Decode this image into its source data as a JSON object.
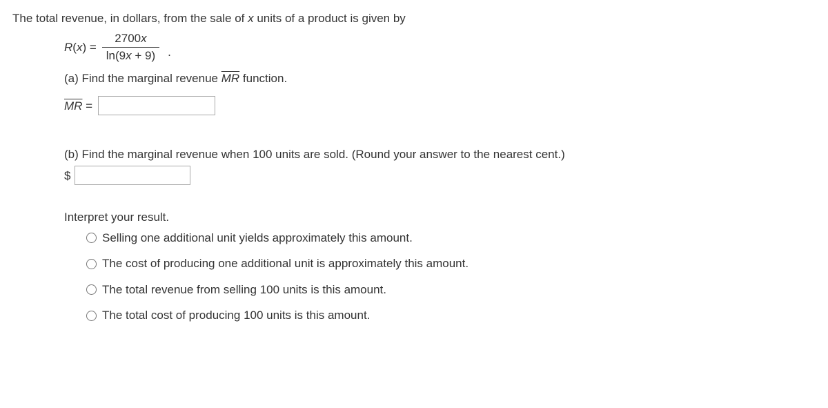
{
  "intro": {
    "prefix": "The total revenue, in dollars, from the sale of ",
    "var": "x",
    "suffix": " units of a product is given by"
  },
  "equation": {
    "lhs_fn": "R",
    "lhs_open": "(",
    "lhs_var": "x",
    "lhs_close": ") = ",
    "numerator_coef": "2700",
    "numerator_var": "x",
    "den_ln": "ln(9",
    "den_var": "x",
    "den_tail": " + 9)",
    "period": "."
  },
  "part_a": {
    "text_before": "(a) Find the marginal revenue ",
    "mr_symbol": "MR",
    "text_after": " function."
  },
  "mr_line": {
    "mr_symbol": "MR",
    "equals": " = "
  },
  "part_b": {
    "text": "(b) Find the marginal revenue when 100 units are sold. (Round your answer to the nearest cent.)",
    "dollar": "$"
  },
  "interpret": {
    "title": "Interpret your result.",
    "options": [
      "Selling one additional unit yields approximately this amount.",
      "The cost of producing one additional unit is approximately this amount.",
      "The total revenue from selling 100 units is this amount.",
      "The total cost of producing 100 units is this amount."
    ]
  }
}
